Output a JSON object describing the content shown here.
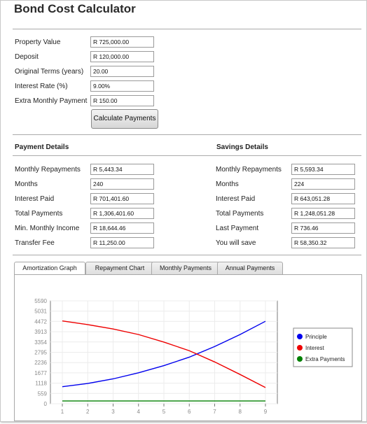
{
  "app": {
    "title": "Bond Cost Calculator"
  },
  "inputs": [
    {
      "label": "Property Value",
      "value": "R 725,000.00"
    },
    {
      "label": "Deposit",
      "value": "R 120,000.00"
    },
    {
      "label": "Original Terms (years)",
      "value": "20.00"
    },
    {
      "label": "Interest Rate (%)",
      "value": "9.00%"
    },
    {
      "label": "Extra Monthly Payment",
      "value": "R 150.00"
    }
  ],
  "calculate_button": "Calculate Payments",
  "payment_details": {
    "heading": "Payment Details",
    "rows": [
      {
        "label": "Monthly Repayments",
        "value": "R 5,443.34"
      },
      {
        "label": "Months",
        "value": "240"
      },
      {
        "label": "Interest Paid",
        "value": "R 701,401.60"
      },
      {
        "label": "Total Payments",
        "value": "R 1,306,401.60"
      },
      {
        "label": "Min. Monthly Income",
        "value": "R 18,644.46"
      },
      {
        "label": "Transfer Fee",
        "value": "R 11,250.00"
      }
    ]
  },
  "savings_details": {
    "heading": "Savings Details",
    "rows": [
      {
        "label": "Monthly Repayments",
        "value": "R 5,593.34"
      },
      {
        "label": "Months",
        "value": "224"
      },
      {
        "label": "Interest Paid",
        "value": "R 643,051.28"
      },
      {
        "label": "Total Payments",
        "value": "R 1,248,051.28"
      },
      {
        "label": "Last Payment",
        "value": "R 736.46"
      },
      {
        "label": "You will save",
        "value": "R 58,350.32"
      }
    ]
  },
  "tabs": [
    {
      "label": "Amortization Graph",
      "active": true
    },
    {
      "label": "Repayment Chart",
      "active": false
    },
    {
      "label": "Monthly Payments",
      "active": false
    },
    {
      "label": "Annual Payments",
      "active": false
    }
  ],
  "chart_data": {
    "type": "line",
    "x": [
      1,
      2,
      3,
      4,
      5,
      6,
      7,
      8,
      9
    ],
    "yticks": [
      0,
      559,
      1118,
      1677,
      2236,
      2795,
      3354,
      3913,
      4472,
      5031,
      5590
    ],
    "ylim": [
      0,
      5590
    ],
    "xlim": [
      1,
      9
    ],
    "grid": true,
    "legend_position": "right",
    "series": [
      {
        "name": "Principle",
        "color": "#0000ee",
        "values": [
          925,
          1100,
          1350,
          1680,
          2070,
          2530,
          3110,
          3760,
          4480
        ]
      },
      {
        "name": "Interest",
        "color": "#ee0000",
        "values": [
          4500,
          4300,
          4060,
          3760,
          3350,
          2880,
          2270,
          1590,
          880
        ]
      },
      {
        "name": "Extra Payments",
        "color": "#008000",
        "values": [
          150,
          150,
          150,
          150,
          150,
          150,
          150,
          150,
          150
        ]
      }
    ]
  }
}
